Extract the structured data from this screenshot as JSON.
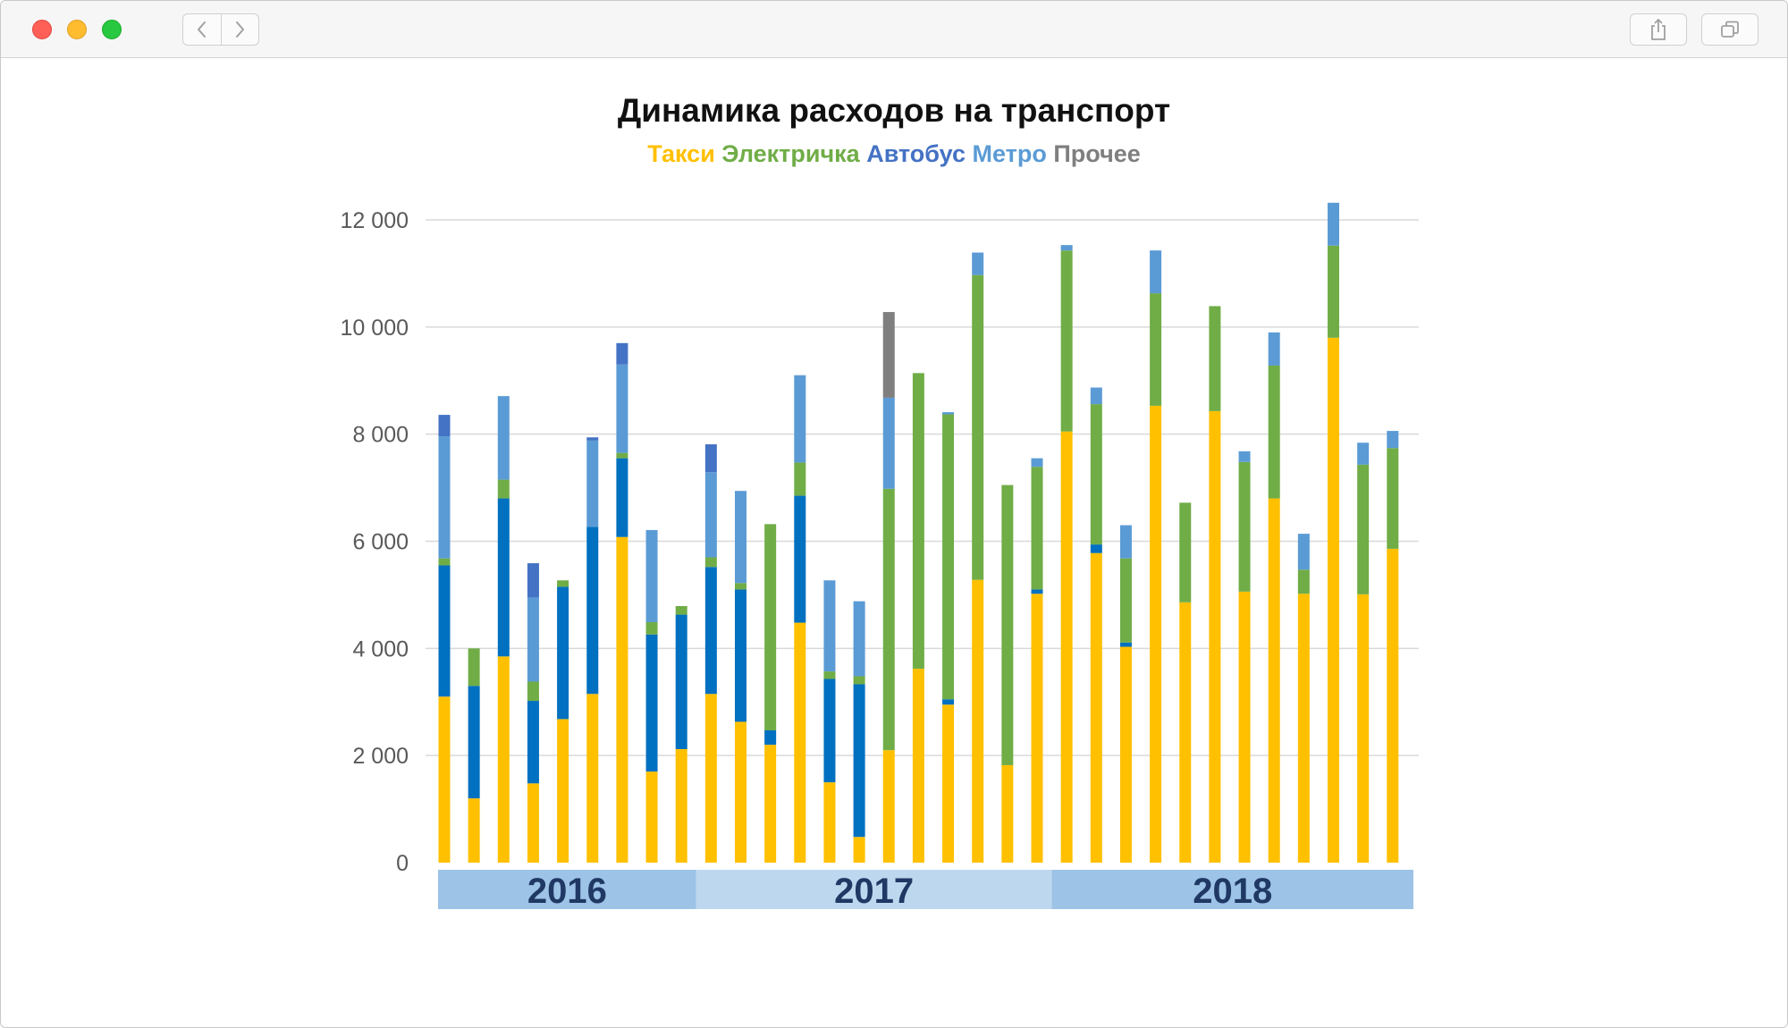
{
  "window": {
    "controls": [
      "close",
      "minimize",
      "zoom"
    ],
    "toolbar_icons": {
      "back": "chevron-left-icon",
      "forward": "chevron-right-icon",
      "share": "share-icon",
      "tabs": "tabs-overview-icon"
    }
  },
  "chart_data": {
    "type": "bar",
    "stacked": true,
    "title": "Динамика расходов на транспорт",
    "legend_placement": "top-center",
    "colors": {
      "taxi": "#ffc000",
      "train": "#70ad47",
      "bus_dark": "#4472c4",
      "bus": "#0070c0",
      "metro": "#5b9bd5",
      "other": "#7f7f7f",
      "year_band_dark": "#9dc3e6",
      "year_band_light": "#bdd7ee",
      "year_label": "#1f3864",
      "grid": "#d9d9d9",
      "tick": "#595959"
    },
    "ylim": [
      0,
      12000
    ],
    "y_ticks": [
      {
        "value": 0,
        "label": "0"
      },
      {
        "value": 2000,
        "label": "2 000"
      },
      {
        "value": 4000,
        "label": "4 000"
      },
      {
        "value": 6000,
        "label": "6 000"
      },
      {
        "value": 8000,
        "label": "8 000"
      },
      {
        "value": 10000,
        "label": "10 000"
      },
      {
        "value": 12000,
        "label": "12 000"
      }
    ],
    "grid": true,
    "years": [
      {
        "label": "2016",
        "months": 9
      },
      {
        "label": "2017",
        "months": 12
      },
      {
        "label": "2018",
        "months": 12
      }
    ],
    "series": [
      {
        "name": "Такси",
        "key": "taxi",
        "color": "#ffc000",
        "values": [
          3100,
          1200,
          3850,
          1480,
          2680,
          3150,
          6080,
          1700,
          2120,
          3150,
          2630,
          2200,
          4480,
          1500,
          480,
          2100,
          3620,
          2950,
          5280,
          1820,
          5020,
          8050,
          5780,
          4030,
          8530,
          4860,
          8430,
          5060,
          6800,
          5020,
          9800,
          5010,
          5860
        ]
      },
      {
        "name": "Автобус",
        "key": "bus",
        "color": "#0070c0",
        "values": [
          2450,
          2100,
          2950,
          1540,
          2470,
          3120,
          1470,
          2560,
          2510,
          2370,
          2470,
          270,
          2370,
          1930,
          2850,
          0,
          0,
          100,
          0,
          0,
          80,
          0,
          160,
          80,
          0,
          0,
          0,
          0,
          0,
          0,
          0,
          0,
          0
        ]
      },
      {
        "name": "Электричка",
        "key": "train",
        "color": "#70ad47",
        "values": [
          130,
          700,
          350,
          360,
          120,
          0,
          100,
          230,
          160,
          180,
          120,
          3850,
          620,
          140,
          150,
          4880,
          5520,
          5320,
          5690,
          5230,
          2290,
          3380,
          2620,
          1570,
          2100,
          1860,
          1960,
          2420,
          2480,
          450,
          1720,
          2420,
          1880
        ]
      },
      {
        "name": "Метро",
        "key": "metro",
        "color": "#5b9bd5",
        "values": [
          2280,
          0,
          1560,
          1570,
          0,
          1610,
          1650,
          1720,
          0,
          1590,
          1720,
          0,
          1630,
          1700,
          1400,
          1700,
          0,
          40,
          420,
          0,
          160,
          100,
          310,
          620,
          800,
          0,
          0,
          200,
          620,
          670,
          800,
          410,
          320
        ]
      },
      {
        "name": "Автобус",
        "key": "bus_dark",
        "color": "#4472c4",
        "values": [
          400,
          0,
          0,
          640,
          0,
          60,
          400,
          0,
          0,
          520,
          0,
          0,
          0,
          0,
          0,
          0,
          0,
          0,
          0,
          0,
          0,
          0,
          0,
          0,
          0,
          0,
          0,
          0,
          0,
          0,
          0,
          0,
          0
        ]
      },
      {
        "name": "Прочее",
        "key": "other",
        "color": "#7f7f7f",
        "values": [
          0,
          0,
          0,
          0,
          0,
          0,
          0,
          0,
          0,
          0,
          0,
          0,
          0,
          0,
          0,
          1600,
          0,
          0,
          0,
          0,
          0,
          0,
          0,
          0,
          0,
          0,
          0,
          0,
          0,
          0,
          0,
          0,
          0
        ]
      }
    ],
    "legend": [
      {
        "label": "Такси",
        "color": "#ffc000"
      },
      {
        "label": "Электричка",
        "color": "#70ad47"
      },
      {
        "label": "Автобус",
        "color": "#4472c4"
      },
      {
        "label": "Метро",
        "color": "#5b9bd5"
      },
      {
        "label": "Прочее",
        "color": "#7f7f7f"
      }
    ]
  }
}
